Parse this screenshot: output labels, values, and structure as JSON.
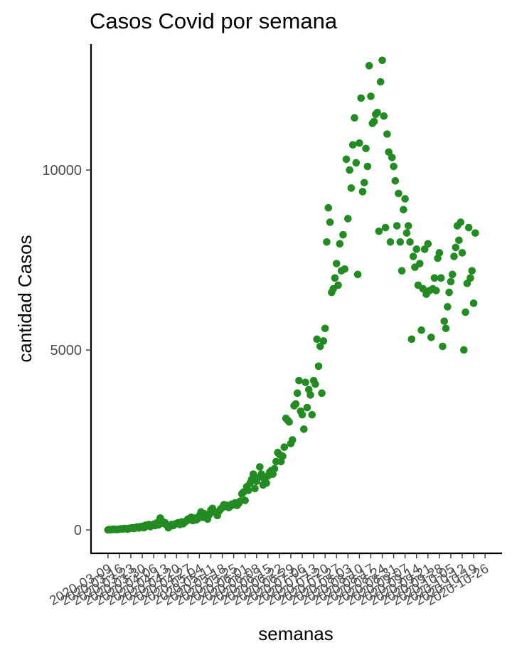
{
  "chart_data": {
    "type": "scatter",
    "title": "Casos Covid por semana",
    "xlabel": "semanas",
    "ylabel": "cantidad Casos",
    "ylim": [
      -650,
      13500
    ],
    "yticks": [
      0,
      5000,
      10000
    ],
    "grid": false,
    "legend": "none",
    "point_color": "#228B22",
    "x_is_date": true,
    "xtick_labels": [
      "2020-03-09",
      "2020-03-16",
      "2020-03-23",
      "2020-03-30",
      "2020-04-06",
      "2020-04-13",
      "2020-04-20",
      "2020-04-27",
      "2020-05-04",
      "2020-05-11",
      "2020-05-18",
      "2020-05-25",
      "2020-06-01",
      "2020-06-08",
      "2020-06-15",
      "2020-06-22",
      "2020-06-29",
      "2020-07-06",
      "2020-07-13",
      "2020-07-20",
      "2020-07-27",
      "2020-08-03",
      "2020-08-10",
      "2020-08-17",
      "2020-08-24",
      "2020-08-31",
      "2020-09-07",
      "2020-09-14",
      "2020-09-21",
      "2020-09-28",
      "2020-10-05",
      "2020-10-12",
      "2020-10-19",
      "2020-10-26"
    ],
    "points": [
      [
        "2020-03-09",
        0
      ],
      [
        "2020-03-10",
        10
      ],
      [
        "2020-03-11",
        5
      ],
      [
        "2020-03-12",
        15
      ],
      [
        "2020-03-13",
        20
      ],
      [
        "2020-03-14",
        8
      ],
      [
        "2020-03-15",
        12
      ],
      [
        "2020-03-16",
        20
      ],
      [
        "2020-03-17",
        30
      ],
      [
        "2020-03-18",
        25
      ],
      [
        "2020-03-19",
        40
      ],
      [
        "2020-03-20",
        35
      ],
      [
        "2020-03-21",
        20
      ],
      [
        "2020-03-22",
        45
      ],
      [
        "2020-03-23",
        50
      ],
      [
        "2020-03-24",
        60
      ],
      [
        "2020-03-25",
        40
      ],
      [
        "2020-03-26",
        70
      ],
      [
        "2020-03-27",
        80
      ],
      [
        "2020-03-28",
        55
      ],
      [
        "2020-03-29",
        90
      ],
      [
        "2020-03-30",
        100
      ],
      [
        "2020-03-31",
        60
      ],
      [
        "2020-04-01",
        130
      ],
      [
        "2020-04-02",
        110
      ],
      [
        "2020-04-03",
        150
      ],
      [
        "2020-04-04",
        90
      ],
      [
        "2020-04-05",
        120
      ],
      [
        "2020-04-06",
        160
      ],
      [
        "2020-04-07",
        120
      ],
      [
        "2020-04-08",
        200
      ],
      [
        "2020-04-09",
        140
      ],
      [
        "2020-04-10",
        330
      ],
      [
        "2020-04-11",
        250
      ],
      [
        "2020-04-12",
        180
      ],
      [
        "2020-04-13",
        200
      ],
      [
        "2020-04-14",
        130
      ],
      [
        "2020-04-15",
        60
      ],
      [
        "2020-04-16",
        100
      ],
      [
        "2020-04-17",
        150
      ],
      [
        "2020-04-18",
        120
      ],
      [
        "2020-04-19",
        160
      ],
      [
        "2020-04-20",
        180
      ],
      [
        "2020-04-21",
        200
      ],
      [
        "2020-04-22",
        150
      ],
      [
        "2020-04-23",
        220
      ],
      [
        "2020-04-24",
        170
      ],
      [
        "2020-04-25",
        210
      ],
      [
        "2020-04-26",
        250
      ],
      [
        "2020-04-27",
        300
      ],
      [
        "2020-04-28",
        280
      ],
      [
        "2020-04-29",
        350
      ],
      [
        "2020-04-30",
        260
      ],
      [
        "2020-05-01",
        330
      ],
      [
        "2020-05-02",
        280
      ],
      [
        "2020-05-03",
        310
      ],
      [
        "2020-05-04",
        400
      ],
      [
        "2020-05-05",
        500
      ],
      [
        "2020-05-06",
        350
      ],
      [
        "2020-05-07",
        450
      ],
      [
        "2020-05-08",
        380
      ],
      [
        "2020-05-09",
        300
      ],
      [
        "2020-05-10",
        420
      ],
      [
        "2020-05-11",
        550
      ],
      [
        "2020-05-12",
        600
      ],
      [
        "2020-05-13",
        500
      ],
      [
        "2020-05-14",
        480
      ],
      [
        "2020-05-15",
        400
      ],
      [
        "2020-05-16",
        520
      ],
      [
        "2020-05-17",
        580
      ],
      [
        "2020-05-18",
        620
      ],
      [
        "2020-05-19",
        700
      ],
      [
        "2020-05-20",
        650
      ],
      [
        "2020-05-21",
        680
      ],
      [
        "2020-05-22",
        620
      ],
      [
        "2020-05-23",
        660
      ],
      [
        "2020-05-24",
        720
      ],
      [
        "2020-05-25",
        700
      ],
      [
        "2020-05-26",
        750
      ],
      [
        "2020-05-27",
        680
      ],
      [
        "2020-05-28",
        730
      ],
      [
        "2020-05-29",
        800
      ],
      [
        "2020-05-30",
        1000
      ],
      [
        "2020-05-31",
        1050
      ],
      [
        "2020-06-01",
        820
      ],
      [
        "2020-06-02",
        1200
      ],
      [
        "2020-06-03",
        1100
      ],
      [
        "2020-06-04",
        1300
      ],
      [
        "2020-06-05",
        1400
      ],
      [
        "2020-06-06",
        1550
      ],
      [
        "2020-06-07",
        1150
      ],
      [
        "2020-06-08",
        1350
      ],
      [
        "2020-06-09",
        1450
      ],
      [
        "2020-06-10",
        1750
      ],
      [
        "2020-06-11",
        1550
      ],
      [
        "2020-06-12",
        1250
      ],
      [
        "2020-06-13",
        1400
      ],
      [
        "2020-06-14",
        1300
      ],
      [
        "2020-06-15",
        1500
      ],
      [
        "2020-06-16",
        1600
      ],
      [
        "2020-06-17",
        1650
      ],
      [
        "2020-06-18",
        1550
      ],
      [
        "2020-06-19",
        1700
      ],
      [
        "2020-06-20",
        1900
      ],
      [
        "2020-06-21",
        2150
      ],
      [
        "2020-06-22",
        2100
      ],
      [
        "2020-06-23",
        1900
      ],
      [
        "2020-06-24",
        2050
      ],
      [
        "2020-06-25",
        2300
      ],
      [
        "2020-06-26",
        3100
      ],
      [
        "2020-06-27",
        3050
      ],
      [
        "2020-06-28",
        3000
      ],
      [
        "2020-06-29",
        2400
      ],
      [
        "2020-06-30",
        2500
      ],
      [
        "2020-07-01",
        3450
      ],
      [
        "2020-07-02",
        3500
      ],
      [
        "2020-07-03",
        3800
      ],
      [
        "2020-07-04",
        4150
      ],
      [
        "2020-07-05",
        3300
      ],
      [
        "2020-07-06",
        3200
      ],
      [
        "2020-07-07",
        2800
      ],
      [
        "2020-07-08",
        4100
      ],
      [
        "2020-07-09",
        3400
      ],
      [
        "2020-07-10",
        3900
      ],
      [
        "2020-07-11",
        3750
      ],
      [
        "2020-07-12",
        3200
      ],
      [
        "2020-07-13",
        4150
      ],
      [
        "2020-07-14",
        4050
      ],
      [
        "2020-07-15",
        5300
      ],
      [
        "2020-07-16",
        4550
      ],
      [
        "2020-07-17",
        5100
      ],
      [
        "2020-07-18",
        3800
      ],
      [
        "2020-07-19",
        5250
      ],
      [
        "2020-07-20",
        5600
      ],
      [
        "2020-07-21",
        8000
      ],
      [
        "2020-07-22",
        8950
      ],
      [
        "2020-07-23",
        8550
      ],
      [
        "2020-07-24",
        6600
      ],
      [
        "2020-07-25",
        6700
      ],
      [
        "2020-07-26",
        7000
      ],
      [
        "2020-07-27",
        7400
      ],
      [
        "2020-07-28",
        6800
      ],
      [
        "2020-07-29",
        7950
      ],
      [
        "2020-07-30",
        7200
      ],
      [
        "2020-07-31",
        8200
      ],
      [
        "2020-08-01",
        7250
      ],
      [
        "2020-08-02",
        10300
      ],
      [
        "2020-08-03",
        8650
      ],
      [
        "2020-08-04",
        10000
      ],
      [
        "2020-08-05",
        9500
      ],
      [
        "2020-08-06",
        10700
      ],
      [
        "2020-08-07",
        11450
      ],
      [
        "2020-08-08",
        10200
      ],
      [
        "2020-08-09",
        7100
      ],
      [
        "2020-08-10",
        10750
      ],
      [
        "2020-08-11",
        12000
      ],
      [
        "2020-08-12",
        9400
      ],
      [
        "2020-08-13",
        9650
      ],
      [
        "2020-08-14",
        10600
      ],
      [
        "2020-08-15",
        10100
      ],
      [
        "2020-08-16",
        12900
      ],
      [
        "2020-08-17",
        12050
      ],
      [
        "2020-08-18",
        11300
      ],
      [
        "2020-08-19",
        11350
      ],
      [
        "2020-08-20",
        11550
      ],
      [
        "2020-08-21",
        11600
      ],
      [
        "2020-08-22",
        8300
      ],
      [
        "2020-08-23",
        12450
      ],
      [
        "2020-08-24",
        13050
      ],
      [
        "2020-08-25",
        11500
      ],
      [
        "2020-08-26",
        8400
      ],
      [
        "2020-08-27",
        11000
      ],
      [
        "2020-08-28",
        10500
      ],
      [
        "2020-08-29",
        8000
      ],
      [
        "2020-08-30",
        10350
      ],
      [
        "2020-08-31",
        10100
      ],
      [
        "2020-09-01",
        9700
      ],
      [
        "2020-09-02",
        8450
      ],
      [
        "2020-09-03",
        9350
      ],
      [
        "2020-09-04",
        8000
      ],
      [
        "2020-09-05",
        7200
      ],
      [
        "2020-09-06",
        8900
      ],
      [
        "2020-09-07",
        9200
      ],
      [
        "2020-09-08",
        8250
      ],
      [
        "2020-09-09",
        8450
      ],
      [
        "2020-09-10",
        8000
      ],
      [
        "2020-09-11",
        5300
      ],
      [
        "2020-09-12",
        7600
      ],
      [
        "2020-09-13",
        7300
      ],
      [
        "2020-09-14",
        7800
      ],
      [
        "2020-09-15",
        6800
      ],
      [
        "2020-09-16",
        7400
      ],
      [
        "2020-09-17",
        5550
      ],
      [
        "2020-09-18",
        6700
      ],
      [
        "2020-09-19",
        7800
      ],
      [
        "2020-09-20",
        6550
      ],
      [
        "2020-09-21",
        7950
      ],
      [
        "2020-09-22",
        6650
      ],
      [
        "2020-09-23",
        5350
      ],
      [
        "2020-09-24",
        6700
      ],
      [
        "2020-09-25",
        7000
      ],
      [
        "2020-09-26",
        6650
      ],
      [
        "2020-09-27",
        7550
      ],
      [
        "2020-09-28",
        7700
      ],
      [
        "2020-09-29",
        7000
      ],
      [
        "2020-09-30",
        5100
      ],
      [
        "2020-10-01",
        5800
      ],
      [
        "2020-10-02",
        5600
      ],
      [
        "2020-10-03",
        6200
      ],
      [
        "2020-10-04",
        6600
      ],
      [
        "2020-10-05",
        6900
      ],
      [
        "2020-10-06",
        7100
      ],
      [
        "2020-10-07",
        7600
      ],
      [
        "2020-10-08",
        7850
      ],
      [
        "2020-10-09",
        8450
      ],
      [
        "2020-10-10",
        8050
      ],
      [
        "2020-10-11",
        8550
      ],
      [
        "2020-10-12",
        7700
      ],
      [
        "2020-10-13",
        5000
      ],
      [
        "2020-10-14",
        6050
      ],
      [
        "2020-10-15",
        6850
      ],
      [
        "2020-10-16",
        8400
      ],
      [
        "2020-10-17",
        7000
      ],
      [
        "2020-10-18",
        7200
      ],
      [
        "2020-10-19",
        6300
      ],
      [
        "2020-10-20",
        8250
      ]
    ]
  }
}
